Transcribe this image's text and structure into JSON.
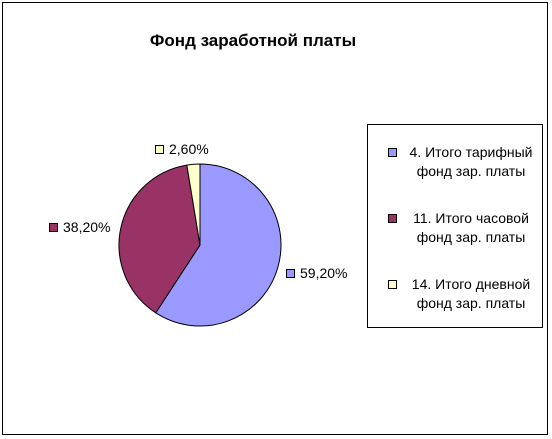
{
  "chart_data": {
    "type": "pie",
    "title": "Фонд заработной платы",
    "categories": [
      "4. Итого тарифный фонд зар. платы",
      "11. Итого часовой фонд зар. платы",
      "14. Итого дневной фонд зар. платы"
    ],
    "values": [
      59.2,
      38.2,
      2.6
    ],
    "data_labels": [
      "59,20%",
      "38,20%",
      "2,60%"
    ],
    "colors": [
      "#9999ff",
      "#993366",
      "#ffffcc"
    ],
    "legend": {
      "placement": "right",
      "items": [
        {
          "label_line1": "4. Итого тарифный",
          "label_line2": "фонд зар. платы"
        },
        {
          "label_line1": "11. Итого часовой",
          "label_line2": "фонд зар. платы"
        },
        {
          "label_line1": "14. Итого дневной",
          "label_line2": "фонд зар. платы"
        }
      ]
    }
  }
}
